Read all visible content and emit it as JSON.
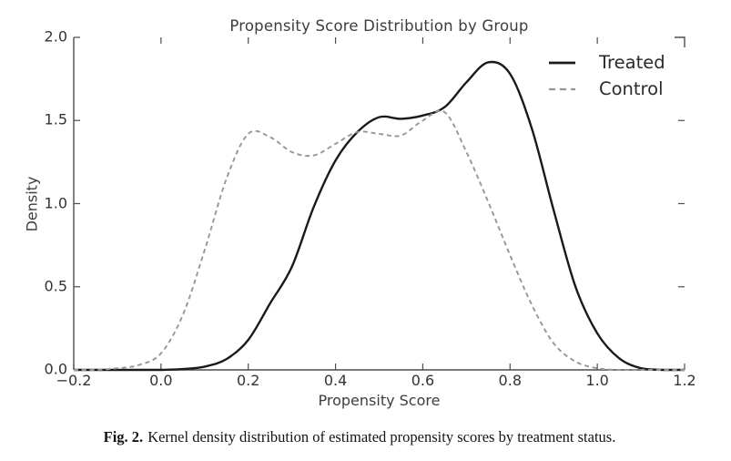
{
  "figure": {
    "caption_label": "Fig. 2.",
    "caption_text": "Kernel density distribution of estimated propensity scores by treatment status."
  },
  "chart_data": {
    "type": "line",
    "title": "Propensity Score Distribution by Group",
    "xlabel": "Propensity Score",
    "ylabel": "Density",
    "xlim": [
      -0.2,
      1.2
    ],
    "ylim": [
      0,
      2.0
    ],
    "grid": false,
    "legend_position": "upper right",
    "x_ticks": [
      -0.2,
      0.0,
      0.2,
      0.4,
      0.6,
      0.8,
      1.0,
      1.2
    ],
    "x_tick_labels": [
      "−0.2",
      "0.0",
      "0.2",
      "0.4",
      "0.6",
      "0.8",
      "1.0",
      "1.2"
    ],
    "y_ticks": [
      0.0,
      0.5,
      1.0,
      1.5,
      2.0
    ],
    "y_tick_labels": [
      "0.0",
      "0.5",
      "1.0",
      "1.5",
      "2.0"
    ],
    "x": [
      -0.2,
      -0.15,
      -0.1,
      -0.05,
      0.0,
      0.05,
      0.1,
      0.15,
      0.2,
      0.25,
      0.3,
      0.35,
      0.4,
      0.45,
      0.5,
      0.55,
      0.6,
      0.65,
      0.7,
      0.75,
      0.8,
      0.85,
      0.9,
      0.95,
      1.0,
      1.05,
      1.1,
      1.15,
      1.2
    ],
    "series": [
      {
        "name": "Treated",
        "style": "solid",
        "color": "#1a1a1a",
        "values": [
          0,
          0,
          0,
          0,
          0,
          0.005,
          0.02,
          0.065,
          0.18,
          0.4,
          0.62,
          0.98,
          1.26,
          1.43,
          1.52,
          1.51,
          1.53,
          1.58,
          1.73,
          1.85,
          1.78,
          1.45,
          0.96,
          0.5,
          0.22,
          0.07,
          0.01,
          0,
          0
        ]
      },
      {
        "name": "Control",
        "style": "dashed",
        "color": "#969696",
        "values": [
          0,
          0,
          0.01,
          0.03,
          0.1,
          0.33,
          0.72,
          1.15,
          1.42,
          1.4,
          1.31,
          1.29,
          1.36,
          1.43,
          1.42,
          1.41,
          1.5,
          1.55,
          1.31,
          1.01,
          0.69,
          0.39,
          0.16,
          0.05,
          0.01,
          0,
          0,
          0,
          0
        ]
      }
    ]
  },
  "colors": {
    "background": "#ffffff",
    "spine": "#4d4d4d",
    "tick_label": "#333333",
    "title": "#3d3d3d",
    "legend_text": "#2b2b2b",
    "treated_line": "#1a1a1a",
    "control_line": "#969696"
  }
}
